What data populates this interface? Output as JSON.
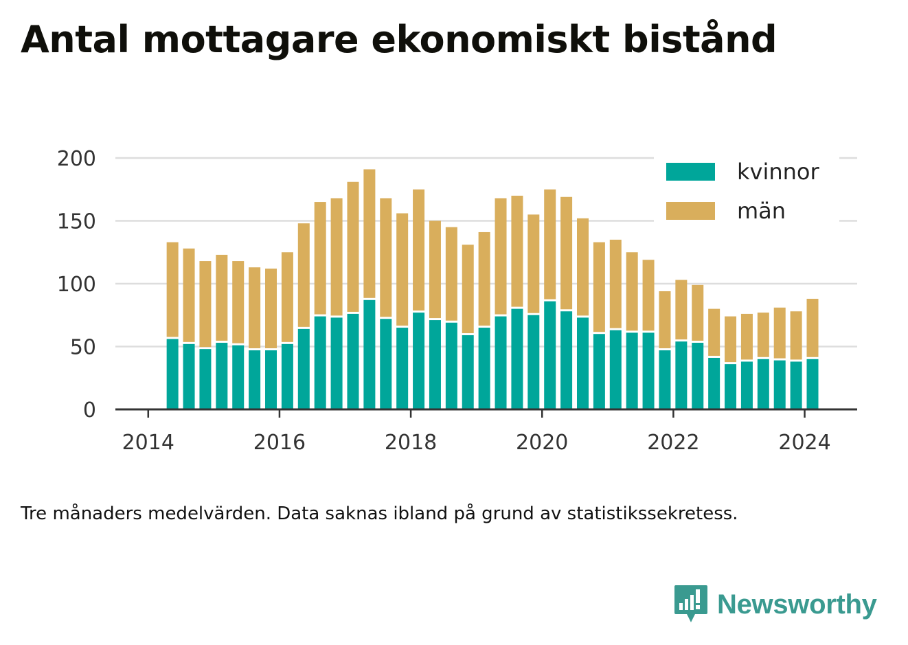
{
  "title": "Antal mottagare ekonomiskt bistånd",
  "footnote": "Tre månaders medelvärden. Data saknas ibland på grund av statistikssekretess.",
  "brand": {
    "name": "Newsworthy",
    "color": "#3a9a90",
    "icon": "bar-chart-speech-bubble-icon"
  },
  "colors": {
    "kvinnor": "#00a69a",
    "man": "#d9ae5c",
    "grid": "#dddddd",
    "axis": "#333333"
  },
  "chart_data": {
    "type": "bar",
    "stacked": true,
    "title": "Antal mottagare ekonomiskt bistånd",
    "xlabel": "",
    "ylabel": "",
    "ylim": [
      0,
      200
    ],
    "yticks": [
      0,
      50,
      100,
      150,
      200
    ],
    "xlim": [
      2013.5,
      2024.8
    ],
    "xticks": [
      2014,
      2016,
      2018,
      2020,
      2022,
      2024
    ],
    "grid": true,
    "legend": "top-right",
    "x": [
      2014.37,
      2014.62,
      2014.87,
      2015.12,
      2015.37,
      2015.62,
      2015.87,
      2016.12,
      2016.37,
      2016.62,
      2016.87,
      2017.12,
      2017.37,
      2017.62,
      2017.87,
      2018.12,
      2018.37,
      2018.62,
      2018.87,
      2019.12,
      2019.37,
      2019.62,
      2019.87,
      2020.12,
      2020.37,
      2020.62,
      2020.87,
      2021.12,
      2021.37,
      2021.62,
      2021.87,
      2022.12,
      2022.37,
      2022.62,
      2022.87,
      2023.12,
      2023.37,
      2023.62,
      2023.87,
      2024.12
    ],
    "series": [
      {
        "name": "kvinnor",
        "values": [
          56,
          52,
          48,
          53,
          51,
          47,
          47,
          52,
          64,
          74,
          73,
          76,
          87,
          72,
          65,
          77,
          71,
          69,
          59,
          65,
          74,
          80,
          75,
          86,
          78,
          73,
          60,
          63,
          61,
          61,
          47,
          54,
          53,
          41,
          36,
          38,
          40,
          39,
          38,
          40
        ]
      },
      {
        "name": "män",
        "values": [
          77,
          76,
          70,
          70,
          67,
          66,
          65,
          73,
          84,
          91,
          95,
          105,
          104,
          96,
          91,
          98,
          79,
          76,
          72,
          76,
          94,
          90,
          80,
          89,
          91,
          79,
          73,
          72,
          64,
          58,
          47,
          49,
          46,
          39,
          38,
          38,
          37,
          42,
          40,
          48
        ]
      }
    ]
  }
}
